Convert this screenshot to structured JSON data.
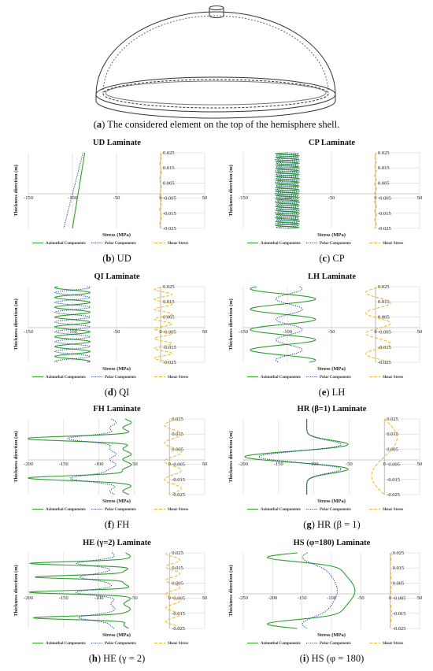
{
  "figure": {
    "caption_a_label": "a",
    "caption_a_text": " The considered element on the top of the hemisphere shell."
  },
  "chart_data": [
    {
      "type": "line",
      "panel": "b",
      "caption_label": "b",
      "caption_text": " UD",
      "title": "UD Laminate",
      "xlabel": "Stress (MPa)",
      "ylabel": "Thickness direction (m)",
      "xlim": [
        -150,
        50
      ],
      "ylim": [
        -0.025,
        0.025
      ],
      "x_ticks": [
        -150,
        -100,
        -50,
        0,
        50
      ],
      "y_ticks": [
        0.025,
        0.015,
        0.005,
        -0.005,
        -0.015,
        -0.025
      ],
      "pattern": "ud",
      "grid": true,
      "series": [
        {
          "name": "Azimuthal Components",
          "color": "#2e9e2e",
          "dash": "solid",
          "base": -93,
          "amp": 7,
          "period": 0,
          "phase": 0
        },
        {
          "name": "Polar Components",
          "color": "#1f3a8f",
          "dash": "dotted",
          "base": -99,
          "amp": 11,
          "period": 0,
          "phase": 0
        },
        {
          "name": "Shear Stress",
          "color": "#f2b522",
          "dash": "dashed",
          "base": 0,
          "amp": 1,
          "period": 0.01,
          "phase": 0
        }
      ]
    },
    {
      "type": "line",
      "panel": "c",
      "caption_label": "c",
      "caption_text": " CP",
      "title": "CP Laminate",
      "xlabel": "Stress (MPa)",
      "ylabel": "Thickness direction (m)",
      "xlim": [
        -150,
        50
      ],
      "ylim": [
        -0.025,
        0.025
      ],
      "x_ticks": [
        -150,
        -100,
        -50,
        0,
        50
      ],
      "y_ticks": [
        0.025,
        0.015,
        0.005,
        -0.005,
        -0.015,
        -0.025
      ],
      "pattern": "osc",
      "grid": true,
      "series": [
        {
          "name": "Azimuthal Components",
          "color": "#2e9e2e",
          "dash": "solid",
          "base": -100,
          "amp": 13,
          "period": 0.0025,
          "phase": 0
        },
        {
          "name": "Polar Components",
          "color": "#1f3a8f",
          "dash": "dotted",
          "base": -100,
          "amp": 13,
          "period": 0.0025,
          "phase": 3.14
        },
        {
          "name": "Shear Stress",
          "color": "#f2b522",
          "dash": "dashed",
          "base": 0,
          "amp": 1,
          "period": 0.006,
          "phase": 0
        }
      ]
    },
    {
      "type": "line",
      "panel": "d",
      "caption_label": "d",
      "caption_text": " QI",
      "title": "QI Laminate",
      "xlabel": "Stress (MPa)",
      "ylabel": "Thickness direction (m)",
      "xlim": [
        -150,
        50
      ],
      "ylim": [
        -0.025,
        0.025
      ],
      "x_ticks": [
        -150,
        -100,
        -50,
        0,
        50
      ],
      "y_ticks": [
        0.025,
        0.015,
        0.005,
        -0.005,
        -0.015,
        -0.025
      ],
      "pattern": "osc",
      "grid": true,
      "series": [
        {
          "name": "Azimuthal Components",
          "color": "#2e9e2e",
          "dash": "solid",
          "base": -100,
          "amp": 20,
          "period": 0.0065,
          "phase": 0
        },
        {
          "name": "Polar Components",
          "color": "#1f3a8f",
          "dash": "dotted",
          "base": -100,
          "amp": 20,
          "period": 0.0065,
          "phase": 3.14
        },
        {
          "name": "Shear Stress",
          "color": "#f2b522",
          "dash": "dashed",
          "base": 3,
          "amp": 10,
          "period": 0.0065,
          "phase": 1.2
        }
      ]
    },
    {
      "type": "line",
      "panel": "e",
      "caption_label": "e",
      "caption_text": " LH",
      "title": "LH Laminate",
      "xlabel": "Stress (MPa)",
      "ylabel": "Thickness direction (m)",
      "xlim": [
        -150,
        50
      ],
      "ylim": [
        -0.025,
        0.025
      ],
      "x_ticks": [
        -150,
        -100,
        -50,
        0,
        50
      ],
      "y_ticks": [
        0.025,
        0.015,
        0.005,
        -0.005,
        -0.015,
        -0.025
      ],
      "pattern": "osc",
      "grid": true,
      "series": [
        {
          "name": "Azimuthal Components",
          "color": "#2e9e2e",
          "dash": "solid",
          "base": -105,
          "amp": 37,
          "period": 0.0135,
          "phase": 0
        },
        {
          "name": "Polar Components",
          "color": "#1f3a8f",
          "dash": "dotted",
          "base": -98,
          "amp": 15,
          "period": 0.0135,
          "phase": 3.14
        },
        {
          "name": "Shear Stress",
          "color": "#f2b522",
          "dash": "dashed",
          "base": 3,
          "amp": 14,
          "period": 0.0135,
          "phase": 1.2
        }
      ]
    },
    {
      "type": "line",
      "panel": "f",
      "caption_label": "f",
      "caption_text": " FH",
      "title": "FH Laminate",
      "xlabel": "Stress (MPa)",
      "ylabel": "Thickness direction (m)",
      "xlim": [
        -200,
        50
      ],
      "ylim": [
        -0.025,
        0.025
      ],
      "x_ticks": [
        -200,
        -150,
        -100,
        -50,
        0,
        50
      ],
      "y_ticks": [
        0.025,
        0.015,
        0.005,
        -0.005,
        -0.015,
        -0.025
      ],
      "pattern": "spike",
      "grid": true,
      "spikes": [
        0.012,
        -0.014
      ],
      "series": [
        {
          "name": "Azimuthal Components",
          "color": "#2e9e2e",
          "dash": "solid",
          "base": -60,
          "low": -200,
          "width": 0.0022,
          "wiggle": 20
        },
        {
          "name": "Polar Components",
          "color": "#1f3a8f",
          "dash": "dotted",
          "base": -80,
          "low": -140,
          "width": 0.003,
          "wiggle": 15
        },
        {
          "name": "Shear Stress",
          "color": "#f2b522",
          "dash": "dashed",
          "base": 5,
          "amp": 12,
          "period": 0.012,
          "phase": 0
        }
      ]
    },
    {
      "type": "line",
      "panel": "g",
      "caption_label": "g",
      "caption_text": " HR (β = 1)",
      "title": "HR (β=1) Laminate",
      "xlabel": "Stress (MPa)",
      "ylabel": "Thickness direction (m)",
      "xlim": [
        -200,
        50
      ],
      "ylim": [
        -0.025,
        0.025
      ],
      "x_ticks": [
        -200,
        -150,
        -100,
        -50,
        0,
        50
      ],
      "y_ticks": [
        0.025,
        0.015,
        0.005,
        -0.005,
        -0.015,
        -0.025
      ],
      "pattern": "hr",
      "grid": true,
      "series": [
        {
          "name": "Azimuthal Components",
          "color": "#2e9e2e",
          "dash": "solid",
          "base": -110,
          "low": -200,
          "width": 0.002,
          "wiggle": 60
        },
        {
          "name": "Polar Components",
          "color": "#1f3a8f",
          "dash": "dotted",
          "base": -110,
          "low": -180,
          "width": 0.003,
          "wiggle": 50
        },
        {
          "name": "Shear Stress",
          "color": "#f2b522",
          "dash": "dashed",
          "base": 0,
          "amp": 18,
          "period": 0.05,
          "phase": 0
        }
      ]
    },
    {
      "type": "line",
      "panel": "h",
      "caption_label": "h",
      "caption_text": " HE (γ = 2)",
      "title": "HE (γ=2) Laminate",
      "xlabel": "Stress (MPa)",
      "ylabel": "Thickness direction (m)",
      "xlim": [
        -200,
        50
      ],
      "ylim": [
        -0.025,
        0.025
      ],
      "x_ticks": [
        -200,
        -150,
        -100,
        -50,
        0,
        50
      ],
      "y_ticks": [
        0.025,
        0.015,
        0.005,
        -0.005,
        -0.015,
        -0.025
      ],
      "pattern": "spike",
      "grid": true,
      "spikes": [
        0.018,
        0.009,
        -0.001,
        -0.018
      ],
      "series": [
        {
          "name": "Azimuthal Components",
          "color": "#2e9e2e",
          "dash": "solid",
          "base": -60,
          "low": -195,
          "width": 0.0016,
          "wiggle": 15
        },
        {
          "name": "Polar Components",
          "color": "#1f3a8f",
          "dash": "dotted",
          "base": -80,
          "low": -130,
          "width": 0.0025,
          "wiggle": 10
        },
        {
          "name": "Shear Stress",
          "color": "#f2b522",
          "dash": "dashed",
          "base": 5,
          "amp": 10,
          "period": 0.009,
          "phase": 0
        }
      ]
    },
    {
      "type": "line",
      "panel": "i",
      "caption_label": "i",
      "caption_text": " HS (φ = 180)",
      "title": "HS (φ=180) Laminate",
      "xlabel": "Stress (MPa)",
      "ylabel": "Thickness direction (m)",
      "xlim": [
        -250,
        50
      ],
      "ylim": [
        -0.025,
        0.025
      ],
      "x_ticks": [
        -250,
        -200,
        -150,
        -100,
        -50,
        0,
        50
      ],
      "y_ticks": [
        0.025,
        0.015,
        0.005,
        -0.005,
        -0.015,
        -0.025
      ],
      "pattern": "hs",
      "grid": true,
      "series": [
        {
          "name": "Azimuthal Components",
          "color": "#2e9e2e",
          "dash": "solid",
          "base": -90,
          "low": -210,
          "width": 0.004,
          "wiggle": 30
        },
        {
          "name": "Polar Components",
          "color": "#1f3a8f",
          "dash": "dotted",
          "base": -110,
          "low": -150,
          "width": 0.006,
          "wiggle": 20
        },
        {
          "name": "Shear Stress",
          "color": "#f2b522",
          "dash": "dashed",
          "base": 1,
          "amp": 1,
          "period": 0.02,
          "phase": 0
        }
      ]
    }
  ]
}
